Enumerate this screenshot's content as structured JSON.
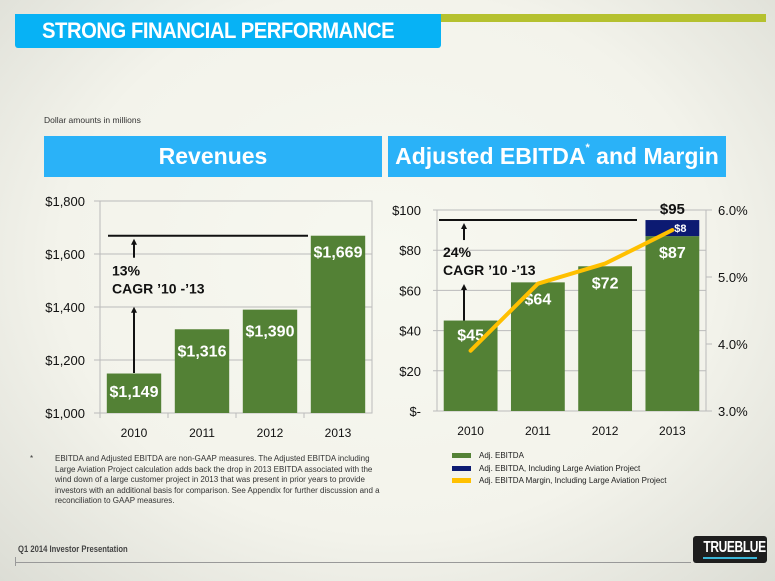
{
  "header": {
    "title": "STRONG FINANCIAL PERFORMANCE",
    "units_note": "Dollar amounts in millions"
  },
  "colors": {
    "title_bar": "#07b2f5",
    "accent_rule": "#b5c12f",
    "panel_header": "#2ab2f8",
    "bar_green": "#538135",
    "bar_navy": "#0c1a72",
    "line_gold": "#ffc000"
  },
  "chart_data": [
    {
      "type": "bar",
      "title": "Revenues",
      "categories": [
        "2010",
        "2011",
        "2012",
        "2013"
      ],
      "values": [
        1149,
        1316,
        1390,
        1669
      ],
      "data_labels": [
        "$1,149",
        "$1,316",
        "$1,390",
        "$1,669"
      ],
      "ylim": [
        1000,
        1800
      ],
      "yticks": [
        1000,
        1200,
        1400,
        1600,
        1800
      ],
      "ytick_labels": [
        "$1,000",
        "$1,200",
        "$1,400",
        "$1,600",
        "$1,800"
      ],
      "grid": true,
      "annotation": {
        "line1": "13%",
        "line2": "CAGR ’10 -’13"
      },
      "xlabel": "",
      "ylabel": ""
    },
    {
      "type": "bar",
      "title": "Adjusted  EBITDA",
      "title_superscript": "*",
      "title_suffix": " and Margin",
      "categories": [
        "2010",
        "2011",
        "2012",
        "2013"
      ],
      "series": [
        {
          "name": "Adj. EBITDA",
          "kind": "bar",
          "values": [
            45,
            64,
            72,
            87
          ],
          "labels": [
            "$45",
            "$64",
            "$72",
            "$87"
          ]
        },
        {
          "name": "Adj. EBITDA, Including Large Aviation  Project",
          "kind": "stacked-bar",
          "values": [
            0,
            0,
            0,
            8
          ],
          "labels": [
            "",
            "",
            "",
            "$8"
          ]
        },
        {
          "name": "Adj. EBITDA Margin, Including Large Aviation Project",
          "kind": "line",
          "axis": "right",
          "values": [
            3.9,
            4.9,
            5.2,
            5.7
          ]
        }
      ],
      "total_label": "$95",
      "ylim": [
        0,
        100
      ],
      "yticks": [
        0,
        20,
        40,
        60,
        80,
        100
      ],
      "ytick_labels": [
        "$-",
        "$20",
        "$40",
        "$60",
        "$80",
        "$100"
      ],
      "y2lim": [
        3.0,
        6.0
      ],
      "y2ticks": [
        3.0,
        4.0,
        5.0,
        6.0
      ],
      "y2tick_labels": [
        "3.0%",
        "4.0%",
        "5.0%",
        "6.0%"
      ],
      "grid": true,
      "legend_position": "bottom",
      "annotation": {
        "line1": "24%",
        "line2": "CAGR ’10 -’13"
      }
    }
  ],
  "footnote": {
    "marker": "*",
    "text": "EBITDA and Adjusted EBITDA are non-GAAP measures. The  Adjusted EBITDA including Large Aviation Project calculation adds back the drop in 2013 EBITDA associated with the wind down of a large customer project in 2013 that was present in prior years to provide investors with an additional basis for comparison. See Appendix for  further discussion and a reconciliation to GAAP measures."
  },
  "footer": {
    "presentation": "Q1 2014 Investor Presentation",
    "logo": "TRUEBLUE"
  }
}
